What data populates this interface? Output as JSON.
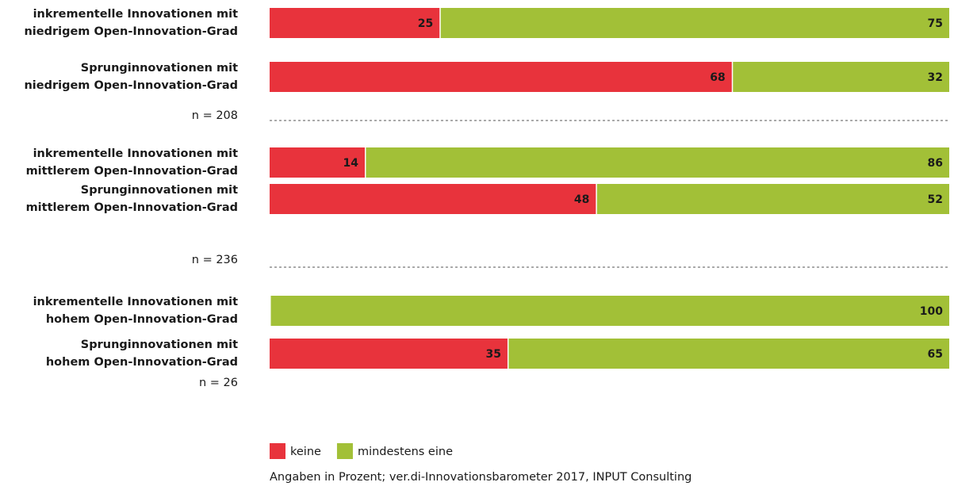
{
  "chart_data": {
    "type": "stacked-bar-horizontal",
    "categories": [
      [
        "inkrementelle Innovationen mit",
        "niedrigem Open-Innovation-Grad"
      ],
      [
        "Sprunginnovationen mit",
        "niedrigem Open-Innovation-Grad"
      ],
      [
        "inkrementelle Innovationen mit",
        "mittlerem Open-Innovation-Grad"
      ],
      [
        "Sprunginnovationen mit",
        "mittlerem Open-Innovation-Grad"
      ],
      [
        "inkrementelle Innovationen mit",
        "hohem Open-Innovation-Grad"
      ],
      [
        "Sprunginnovationen mit",
        "hohem Open-Innovation-Grad"
      ]
    ],
    "series": [
      {
        "name": "keine",
        "color": "#e8333c",
        "values": [
          25,
          68,
          14,
          48,
          0,
          35
        ]
      },
      {
        "name": "mindestens eine",
        "color": "#a2c037",
        "values": [
          75,
          32,
          86,
          52,
          100,
          65
        ]
      }
    ],
    "xlim": [
      0,
      100
    ],
    "group_labels": [
      "n = 208",
      "n = 236",
      "n = 26"
    ],
    "source": "Angaben in Prozent; ver.di-Innovationsbarometer 2017, INPUT Consulting",
    "legend": "bottom-left"
  }
}
